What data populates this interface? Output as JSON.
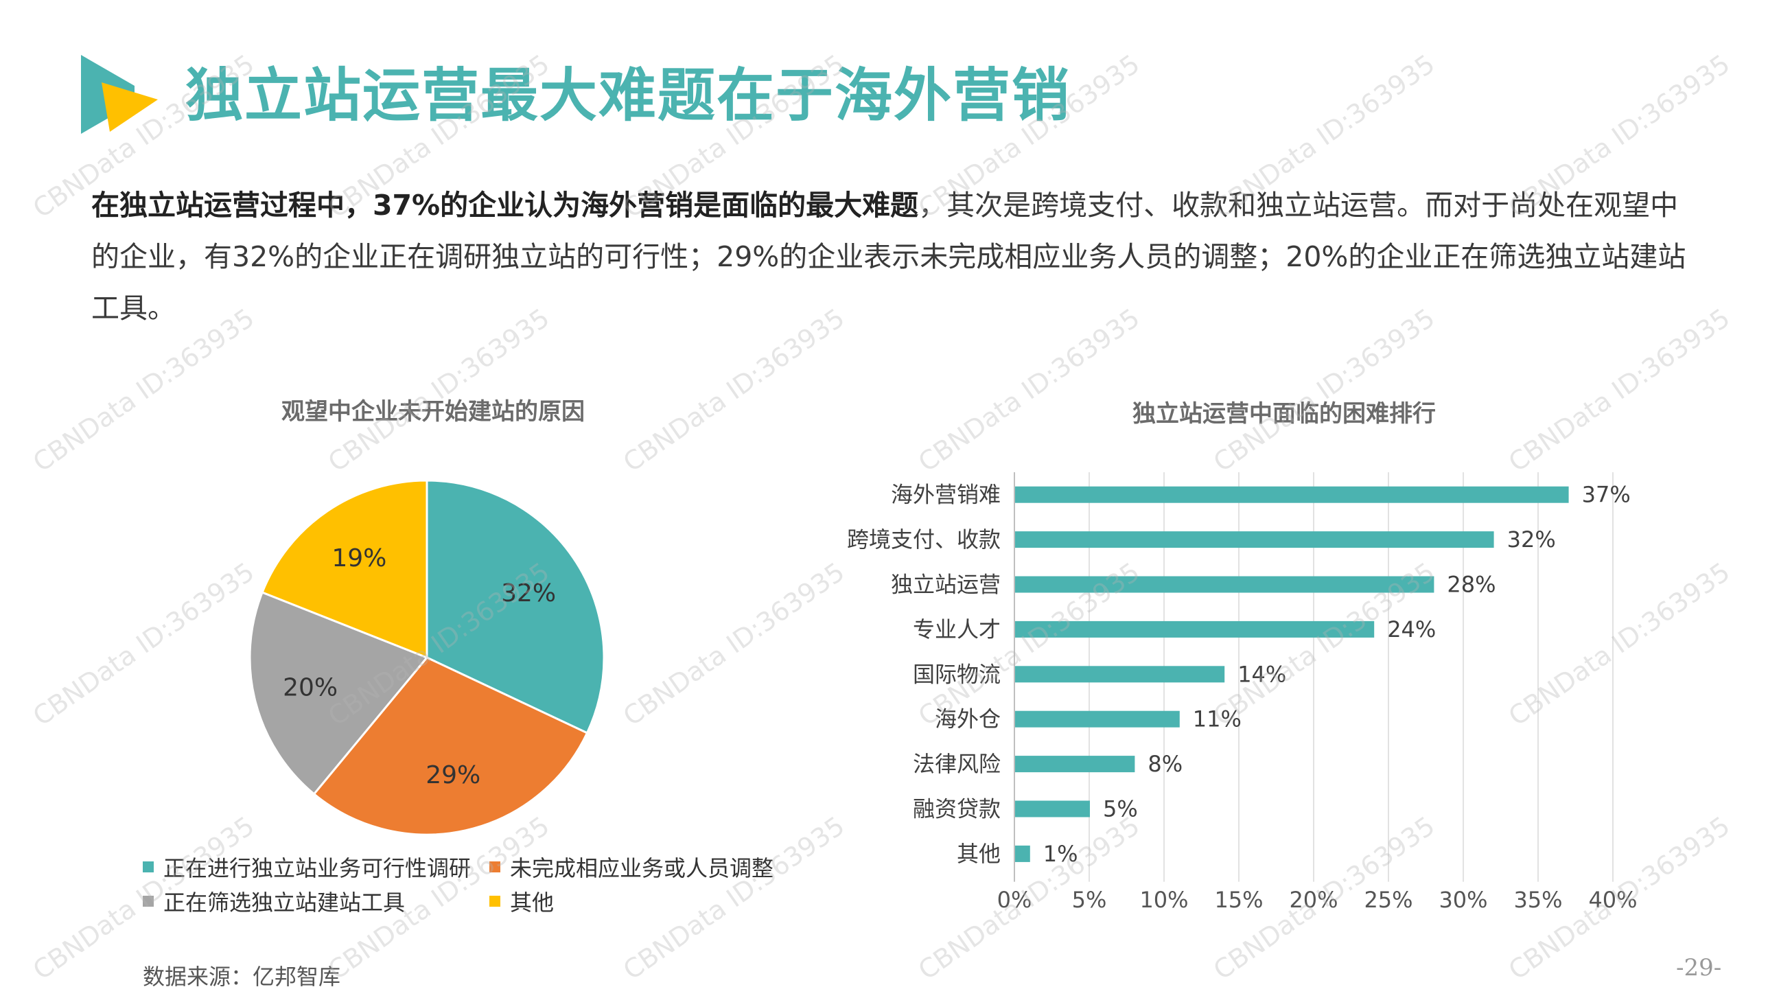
{
  "header": {
    "title": "独立站运营最大难题在于海外营销"
  },
  "summary": {
    "bold": "在独立站运营过程中，37%的企业认为海外营销是面临的最大难题",
    "rest": "，其次是跨境支付、收款和独立站运营。而对于尚处在观望中的企业，有32%的企业正在调研独立站的可行性；29%的企业表示未完成相应业务人员的调整；20%的企业正在筛选独立站建站工具。"
  },
  "colors": {
    "teal": "#4bb3b0",
    "orange": "#ed7d31",
    "gray": "#a5a5a5",
    "yellow": "#ffc000"
  },
  "chart_data": [
    {
      "type": "pie",
      "title": "观望中企业未开始建站的原因",
      "labels": [
        "正在进行独立站业务可行性调研",
        "未完成相应业务或人员调整",
        "正在筛选独立站建站工具",
        "其他"
      ],
      "values": [
        32,
        29,
        20,
        19
      ],
      "value_labels": [
        "32%",
        "29%",
        "20%",
        "19%"
      ],
      "colors": [
        "#4bb3b0",
        "#ed7d31",
        "#a5a5a5",
        "#ffc000"
      ],
      "legend": "bottom"
    },
    {
      "type": "bar",
      "orientation": "horizontal",
      "title": "独立站运营中面临的困难排行",
      "categories": [
        "海外营销难",
        "跨境支付、收款",
        "独立站运营",
        "专业人才",
        "国际物流",
        "海外仓",
        "法律风险",
        "融资贷款",
        "其他"
      ],
      "values": [
        37,
        32,
        28,
        24,
        14,
        11,
        8,
        5,
        1
      ],
      "value_labels": [
        "37%",
        "32%",
        "28%",
        "24%",
        "14%",
        "11%",
        "8%",
        "5%",
        "1%"
      ],
      "xlim": [
        0,
        40
      ],
      "xticks": [
        "0%",
        "5%",
        "10%",
        "15%",
        "20%",
        "25%",
        "30%",
        "35%",
        "40%"
      ],
      "grid": true,
      "color": "#4bb3b0"
    }
  ],
  "source": "数据来源：亿邦智库",
  "page_number": "-29-",
  "watermark": "CBNData ID:363935"
}
